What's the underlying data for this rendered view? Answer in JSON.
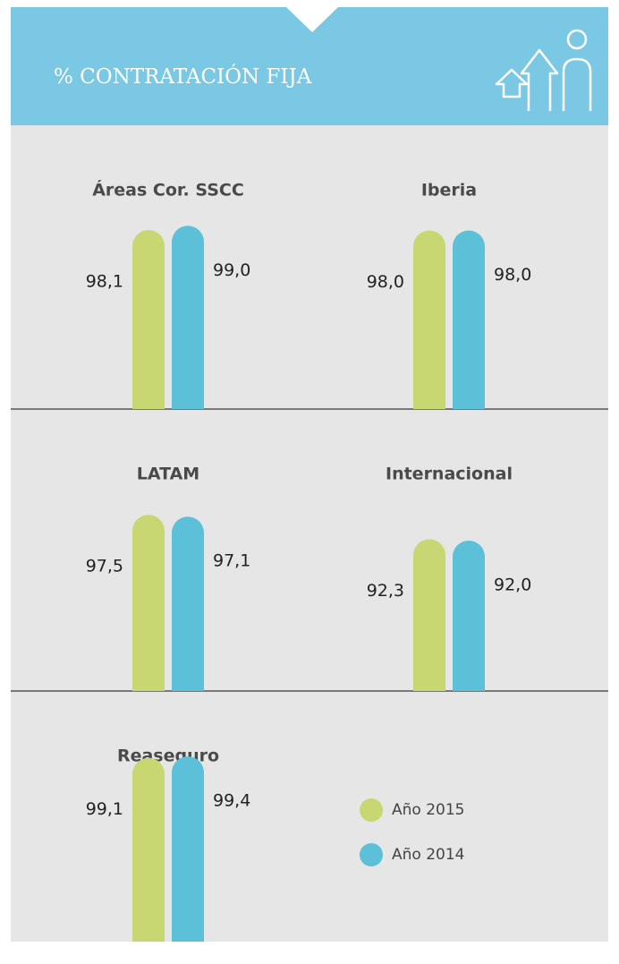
{
  "chart_data": {
    "type": "bar",
    "title": "% CONTRATACIÓN FIJA",
    "categories": [
      "Áreas Cor. SSCC",
      "Iberia",
      "LATAM",
      "Internacional",
      "Reaseguro"
    ],
    "series": [
      {
        "name": "Año 2015",
        "color": "#c8d772",
        "values": [
          98.1,
          98.0,
          97.5,
          92.3,
          99.1
        ],
        "value_labels": [
          "98,1",
          "98,0",
          "97,5",
          "92,3",
          "99,1"
        ]
      },
      {
        "name": "Año 2014",
        "color": "#5cc0d9",
        "values": [
          99.0,
          98.0,
          97.1,
          92.0,
          99.4
        ],
        "value_labels": [
          "99,0",
          "98,0",
          "97,1",
          "92,0",
          "99,4"
        ]
      }
    ],
    "ylim": [
      60,
      100
    ]
  }
}
